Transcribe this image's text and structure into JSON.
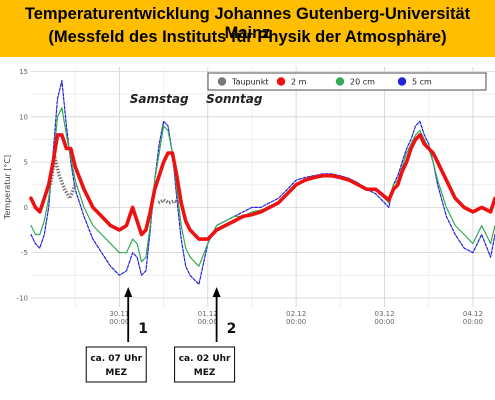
{
  "banner": {
    "title_line1": "Temperaturentwicklung Johannes Gutenberg-Universität Mainz",
    "title_line2": "(Messfeld des Instituts für Physik der Atmosphäre)",
    "background": "#ffbf00"
  },
  "chart_data": {
    "type": "line",
    "ylabel": "Temperatur [°C]",
    "xlabel": "",
    "ylim": [
      -11,
      15.5
    ],
    "xlim": [
      0,
      5.25
    ],
    "y_ticks": [
      -10,
      -5,
      0,
      5,
      10,
      15
    ],
    "x_ticks": [
      {
        "x": 1,
        "label_top": "30.11",
        "label_bottom": "00:00"
      },
      {
        "x": 2,
        "label_top": "01.12",
        "label_bottom": "00:00"
      },
      {
        "x": 3,
        "label_top": "02.12",
        "label_bottom": "00:00"
      },
      {
        "x": 4,
        "label_top": "03.12",
        "label_bottom": "00:00"
      },
      {
        "x": 5,
        "label_top": "04.12",
        "label_bottom": "00:00"
      }
    ],
    "grid": true,
    "legend_position": "top-right",
    "series": [
      {
        "name": "Taupunkt",
        "color": "#777777",
        "style": "dotted",
        "x": [
          0.22,
          0.27,
          0.32,
          0.38,
          0.44,
          0.5,
          1.44,
          1.5,
          1.56,
          1.62,
          1.68
        ],
        "y": [
          2.5,
          5.5,
          3.5,
          2.0,
          1.0,
          2.5,
          0.5,
          0.8,
          0.5,
          0.7,
          0.5
        ]
      },
      {
        "name": "2 m",
        "color": "#ee1111",
        "style": "solid",
        "x": [
          0.0,
          0.05,
          0.1,
          0.15,
          0.2,
          0.25,
          0.3,
          0.35,
          0.4,
          0.45,
          0.5,
          0.6,
          0.7,
          0.8,
          0.9,
          1.0,
          1.08,
          1.15,
          1.2,
          1.25,
          1.3,
          1.35,
          1.4,
          1.45,
          1.5,
          1.55,
          1.6,
          1.65,
          1.7,
          1.75,
          1.8,
          1.9,
          2.0,
          2.1,
          2.2,
          2.3,
          2.4,
          2.5,
          2.6,
          2.7,
          2.8,
          2.9,
          3.0,
          3.1,
          3.2,
          3.3,
          3.4,
          3.5,
          3.6,
          3.7,
          3.8,
          3.9,
          4.0,
          4.05,
          4.1,
          4.15,
          4.2,
          4.25,
          4.3,
          4.35,
          4.4,
          4.45,
          4.5,
          4.55,
          4.6,
          4.7,
          4.8,
          4.9,
          5.0,
          5.1,
          5.2,
          5.25
        ],
        "y": [
          1,
          0,
          -0.5,
          1,
          2.5,
          5,
          8,
          8,
          6.5,
          6.5,
          4.5,
          2,
          0,
          -1,
          -2,
          -2.5,
          -2,
          0,
          -1.5,
          -3,
          -2.5,
          -0.5,
          2,
          3.5,
          5,
          6,
          6,
          3.5,
          0.5,
          -1.5,
          -2.5,
          -3.5,
          -3.5,
          -2.5,
          -2,
          -1.5,
          -1,
          -0.8,
          -0.5,
          0,
          0.5,
          1.5,
          2.5,
          3,
          3.3,
          3.5,
          3.5,
          3.3,
          3,
          2.5,
          2,
          2,
          1.2,
          0.8,
          2,
          2.5,
          4,
          5,
          6.5,
          7.5,
          8,
          7,
          6.5,
          6,
          5,
          3,
          1,
          0,
          -0.5,
          0,
          -0.5,
          1
        ]
      },
      {
        "name": "20 cm",
        "color": "#33aa55",
        "style": "solid",
        "x": [
          0.0,
          0.05,
          0.1,
          0.15,
          0.2,
          0.25,
          0.3,
          0.35,
          0.4,
          0.45,
          0.5,
          0.6,
          0.7,
          0.8,
          0.9,
          1.0,
          1.08,
          1.15,
          1.2,
          1.25,
          1.3,
          1.35,
          1.4,
          1.45,
          1.5,
          1.55,
          1.6,
          1.65,
          1.7,
          1.75,
          1.8,
          1.9,
          2.0,
          2.1,
          2.2,
          2.3,
          2.4,
          2.5,
          2.6,
          2.7,
          2.8,
          2.9,
          3.0,
          3.1,
          3.2,
          3.3,
          3.4,
          3.5,
          3.6,
          3.7,
          3.8,
          3.9,
          4.0,
          4.05,
          4.1,
          4.15,
          4.2,
          4.25,
          4.3,
          4.35,
          4.4,
          4.45,
          4.5,
          4.55,
          4.6,
          4.7,
          4.8,
          4.9,
          5.0,
          5.1,
          5.2,
          5.25
        ],
        "y": [
          -2,
          -3,
          -3,
          -1.5,
          1,
          5,
          10,
          11,
          8,
          5.5,
          3,
          0,
          -2,
          -3,
          -4,
          -5,
          -5,
          -3.5,
          -4,
          -6,
          -5.5,
          -2,
          3,
          6,
          9,
          8.5,
          6,
          2,
          -2,
          -4.5,
          -5.5,
          -6.5,
          -4,
          -2,
          -1.5,
          -1,
          -1,
          -0.5,
          -0.3,
          0,
          0.5,
          1.5,
          2.5,
          3,
          3.3,
          3.5,
          3.5,
          3.3,
          3,
          2.5,
          2,
          2,
          1,
          0.5,
          2.5,
          3,
          4.5,
          6,
          7,
          8,
          8.5,
          7.5,
          6.5,
          5,
          3,
          0,
          -2,
          -3,
          -4,
          -2,
          -4,
          -2
        ]
      },
      {
        "name": "5 cm",
        "color": "#2222dd",
        "style": "solid",
        "x": [
          0.0,
          0.05,
          0.1,
          0.15,
          0.2,
          0.25,
          0.3,
          0.35,
          0.4,
          0.45,
          0.5,
          0.6,
          0.7,
          0.8,
          0.9,
          1.0,
          1.08,
          1.15,
          1.2,
          1.25,
          1.3,
          1.35,
          1.4,
          1.45,
          1.5,
          1.55,
          1.6,
          1.65,
          1.7,
          1.75,
          1.8,
          1.9,
          2.0,
          2.1,
          2.2,
          2.3,
          2.4,
          2.5,
          2.6,
          2.7,
          2.8,
          2.9,
          3.0,
          3.1,
          3.2,
          3.3,
          3.4,
          3.5,
          3.6,
          3.7,
          3.8,
          3.9,
          4.0,
          4.05,
          4.1,
          4.15,
          4.2,
          4.25,
          4.3,
          4.35,
          4.4,
          4.45,
          4.5,
          4.55,
          4.6,
          4.7,
          4.8,
          4.9,
          5.0,
          5.1,
          5.2,
          5.25
        ],
        "y": [
          -3,
          -4,
          -4.5,
          -3,
          0,
          6,
          12,
          14,
          9,
          5,
          2,
          -1,
          -3.5,
          -5,
          -6.5,
          -7.5,
          -7,
          -5,
          -5.5,
          -7.5,
          -7,
          -2.5,
          3,
          7,
          9.5,
          9,
          6,
          1,
          -3.5,
          -6.5,
          -7.5,
          -8.5,
          -4,
          -2,
          -1.5,
          -1,
          -0.5,
          0,
          0,
          0.5,
          1,
          2,
          3,
          3.3,
          3.5,
          3.7,
          3.7,
          3.5,
          3.2,
          2.7,
          2,
          1.5,
          0.5,
          0,
          2.5,
          3.5,
          5,
          6.5,
          7.5,
          9,
          9.5,
          8,
          7,
          5,
          2.5,
          -1,
          -3,
          -4.5,
          -5,
          -3,
          -5.5,
          -3
        ]
      }
    ]
  },
  "annotations": {
    "day_labels": [
      {
        "text": "Samstag",
        "x": 1.45,
        "y": 11.5
      },
      {
        "text": "Sonntag",
        "x": 2.3,
        "y": 11.5
      }
    ],
    "markers": [
      {
        "number": "1",
        "x": 1.1,
        "box_line1": "ca. 07 Uhr",
        "box_line2": "MEZ"
      },
      {
        "number": "2",
        "x": 2.1,
        "box_line1": "ca. 02 Uhr",
        "box_line2": "MEZ"
      }
    ]
  }
}
